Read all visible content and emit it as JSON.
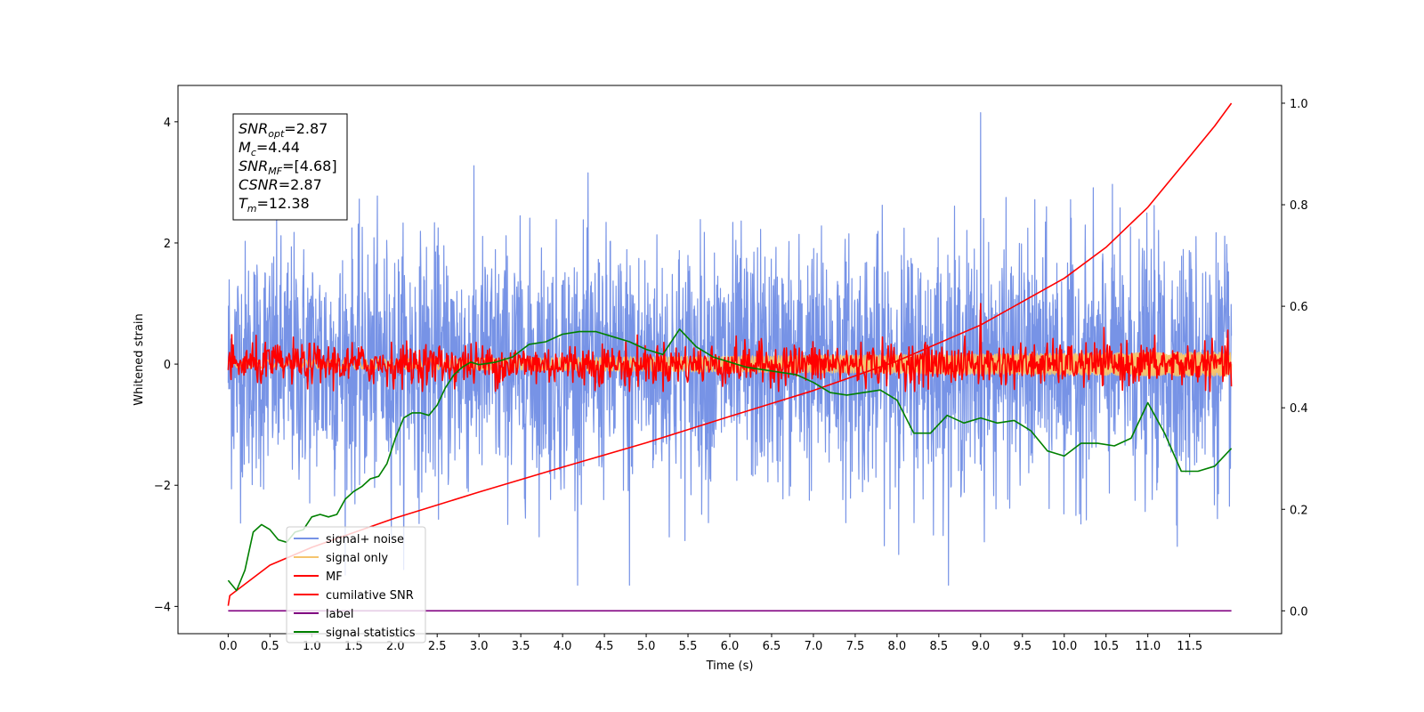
{
  "chart_data": {
    "type": "line",
    "xlabel": "Time (s)",
    "ylabel": "Whitened strain",
    "xlim": [
      -0.6,
      12.6
    ],
    "ylim": [
      -4.45,
      4.6
    ],
    "y2lim": [
      -0.045,
      1.035
    ],
    "xticks": [
      0.0,
      0.5,
      1.0,
      1.5,
      2.0,
      2.5,
      3.0,
      3.5,
      4.0,
      4.5,
      5.0,
      5.5,
      6.0,
      6.5,
      7.0,
      7.5,
      8.0,
      8.5,
      9.0,
      9.5,
      10.0,
      10.5,
      11.0,
      11.5
    ],
    "xtick_labels": [
      "0.0",
      "0.5",
      "1.0",
      "1.5",
      "2.0",
      "2.5",
      "3.0",
      "3.5",
      "4.0",
      "4.5",
      "5.0",
      "5.5",
      "6.0",
      "6.5",
      "7.0",
      "7.5",
      "8.0",
      "8.5",
      "9.0",
      "9.5",
      "10.0",
      "10.5",
      "11.0",
      "11.5"
    ],
    "yticks": [
      -4,
      -2,
      0,
      2,
      4
    ],
    "ytick_labels": [
      "−4",
      "−2",
      "0",
      "2",
      "4"
    ],
    "y2ticks": [
      0.0,
      0.2,
      0.4,
      0.6,
      0.8,
      1.0
    ],
    "y2tick_labels": [
      "0.0",
      "0.2",
      "0.4",
      "0.6",
      "0.8",
      "1.0"
    ],
    "legend_position": "lower-left",
    "grid": false,
    "annotation_lines": [
      {
        "main": "SNR",
        "sub": "opt",
        "value": "=2.87"
      },
      {
        "main": "M",
        "sub": "c",
        "value": "=4.44"
      },
      {
        "main": "SNR",
        "sub": "MF",
        "value": "=[4.68]"
      },
      {
        "main": "CSNR",
        "sub": "",
        "value": "=2.87"
      },
      {
        "main": "T",
        "sub": "m",
        "value": "=12.38"
      }
    ],
    "series": [
      {
        "name": "signal+ noise",
        "color": "#7793e6",
        "axis": "left",
        "kind": "noise",
        "x_range": [
          0.0,
          12.0
        ],
        "mean": 0.0,
        "std": 1.0,
        "min": -3.65,
        "max": 4.15
      },
      {
        "name": "signal only",
        "color": "#f5c46e",
        "axis": "left",
        "kind": "chirp",
        "x_range": [
          0.0,
          12.0
        ],
        "amplitude": 0.2
      },
      {
        "name": "MF",
        "color": "#ff0000",
        "axis": "left",
        "kind": "noise",
        "x_range": [
          0.0,
          12.0
        ],
        "mean": 0.0,
        "std": 0.17,
        "min": -0.45,
        "max": 1.0
      },
      {
        "name": "cumilative SNR",
        "color": "#ff0000",
        "axis": "right",
        "x": [
          0.0,
          0.02,
          0.5,
          1.0,
          2.0,
          3.0,
          4.0,
          5.0,
          6.0,
          7.0,
          8.0,
          9.0,
          10.0,
          10.5,
          11.0,
          11.5,
          11.8,
          12.0
        ],
        "values": [
          0.01,
          0.03,
          0.09,
          0.125,
          0.183,
          0.234,
          0.283,
          0.331,
          0.383,
          0.434,
          0.492,
          0.563,
          0.655,
          0.716,
          0.795,
          0.895,
          0.955,
          1.0
        ]
      },
      {
        "name": "label",
        "color": "#800080",
        "axis": "right",
        "x": [
          0.0,
          12.0
        ],
        "values": [
          0.0,
          0.0
        ]
      },
      {
        "name": "signal statistics",
        "color": "#008000",
        "axis": "right",
        "x": [
          0.0,
          0.1,
          0.2,
          0.3,
          0.4,
          0.5,
          0.6,
          0.7,
          0.8,
          0.9,
          1.0,
          1.1,
          1.2,
          1.3,
          1.4,
          1.5,
          1.6,
          1.7,
          1.8,
          1.9,
          2.0,
          2.1,
          2.2,
          2.3,
          2.4,
          2.5,
          2.6,
          2.7,
          2.8,
          2.9,
          3.0,
          3.2,
          3.4,
          3.6,
          3.8,
          4.0,
          4.2,
          4.4,
          4.6,
          4.8,
          5.0,
          5.2,
          5.4,
          5.6,
          5.8,
          6.0,
          6.2,
          6.4,
          6.6,
          6.8,
          7.0,
          7.2,
          7.4,
          7.6,
          7.8,
          8.0,
          8.2,
          8.4,
          8.6,
          8.8,
          9.0,
          9.2,
          9.4,
          9.6,
          9.8,
          10.0,
          10.2,
          10.4,
          10.6,
          10.8,
          11.0,
          11.2,
          11.4,
          11.6,
          11.8,
          12.0
        ],
        "values": [
          0.06,
          0.04,
          0.08,
          0.155,
          0.17,
          0.16,
          0.14,
          0.135,
          0.155,
          0.16,
          0.185,
          0.19,
          0.185,
          0.19,
          0.22,
          0.235,
          0.245,
          0.26,
          0.265,
          0.29,
          0.34,
          0.38,
          0.39,
          0.39,
          0.385,
          0.405,
          0.44,
          0.465,
          0.48,
          0.49,
          0.485,
          0.49,
          0.5,
          0.525,
          0.53,
          0.545,
          0.55,
          0.55,
          0.54,
          0.53,
          0.515,
          0.505,
          0.555,
          0.52,
          0.5,
          0.49,
          0.48,
          0.475,
          0.47,
          0.465,
          0.45,
          0.43,
          0.425,
          0.43,
          0.435,
          0.415,
          0.35,
          0.35,
          0.385,
          0.37,
          0.38,
          0.37,
          0.375,
          0.355,
          0.315,
          0.305,
          0.33,
          0.33,
          0.325,
          0.34,
          0.41,
          0.35,
          0.275,
          0.275,
          0.285,
          0.32
        ]
      }
    ]
  }
}
